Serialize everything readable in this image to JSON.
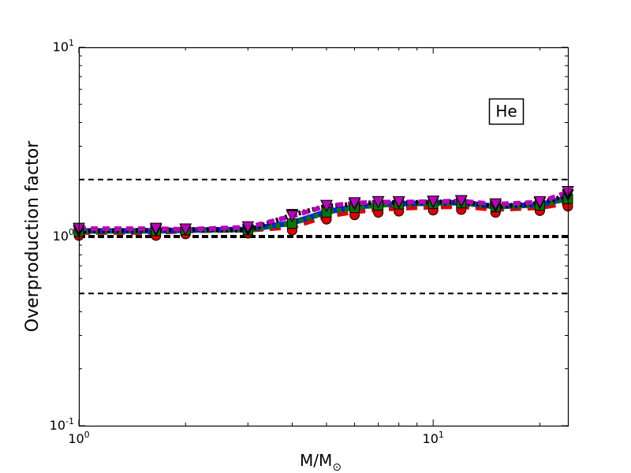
{
  "chart_data": {
    "type": "line",
    "xscale": "log",
    "yscale": "log",
    "xlim": [
      1,
      24
    ],
    "ylim": [
      0.1,
      10
    ],
    "ylabel": "Overproduction factor",
    "xlabel_main": "M/M",
    "xlabel_sub": "⊙",
    "annotation": "He",
    "x_ticks": [
      {
        "base": "10",
        "exp": "0",
        "value": 1
      },
      {
        "base": "10",
        "exp": "1",
        "value": 10
      }
    ],
    "y_ticks": [
      {
        "base": "10",
        "exp": "-1",
        "value": 0.1
      },
      {
        "base": "10",
        "exp": "0",
        "value": 1
      },
      {
        "base": "10",
        "exp": "1",
        "value": 10
      }
    ],
    "reference_lines": [
      {
        "y": 2.0,
        "style": "dashed",
        "color": "#000000",
        "width": 2
      },
      {
        "y": 1.0,
        "style": "dashed",
        "color": "#000000",
        "width": 4
      },
      {
        "y": 0.5,
        "style": "dashed",
        "color": "#000000",
        "width": 2
      }
    ],
    "x": [
      1,
      1.65,
      2,
      3,
      4,
      5,
      6,
      7,
      8,
      10,
      12,
      15,
      20,
      24
    ],
    "series": [
      {
        "color": "#dd0000",
        "marker": "circle",
        "dash": "14,8",
        "values": [
          1.05,
          1.05,
          1.07,
          1.08,
          1.12,
          1.28,
          1.35,
          1.39,
          1.41,
          1.43,
          1.44,
          1.39,
          1.42,
          1.5
        ]
      },
      {
        "color": "#0022ee",
        "marker": "none",
        "dash": "none",
        "values": [
          1.07,
          1.07,
          1.08,
          1.09,
          1.18,
          1.35,
          1.43,
          1.47,
          1.49,
          1.5,
          1.51,
          1.44,
          1.47,
          1.6
        ]
      },
      {
        "color": "#007700",
        "marker": "square",
        "dash": "6,4",
        "values": [
          1.06,
          1.07,
          1.08,
          1.08,
          1.17,
          1.34,
          1.42,
          1.46,
          1.48,
          1.49,
          1.5,
          1.43,
          1.46,
          1.58
        ]
      },
      {
        "color": "#000000",
        "marker": "triangle-down",
        "dash": "3,3",
        "values": [
          1.07,
          1.08,
          1.09,
          1.08,
          1.3,
          1.45,
          1.48,
          1.52,
          1.51,
          1.52,
          1.53,
          1.44,
          1.5,
          1.65
        ]
      },
      {
        "color": "#bb00bb",
        "marker": "triangle-down",
        "dash": "9,6",
        "values": [
          1.1,
          1.1,
          1.09,
          1.12,
          1.28,
          1.45,
          1.5,
          1.52,
          1.52,
          1.53,
          1.54,
          1.48,
          1.52,
          1.72
        ]
      }
    ]
  }
}
